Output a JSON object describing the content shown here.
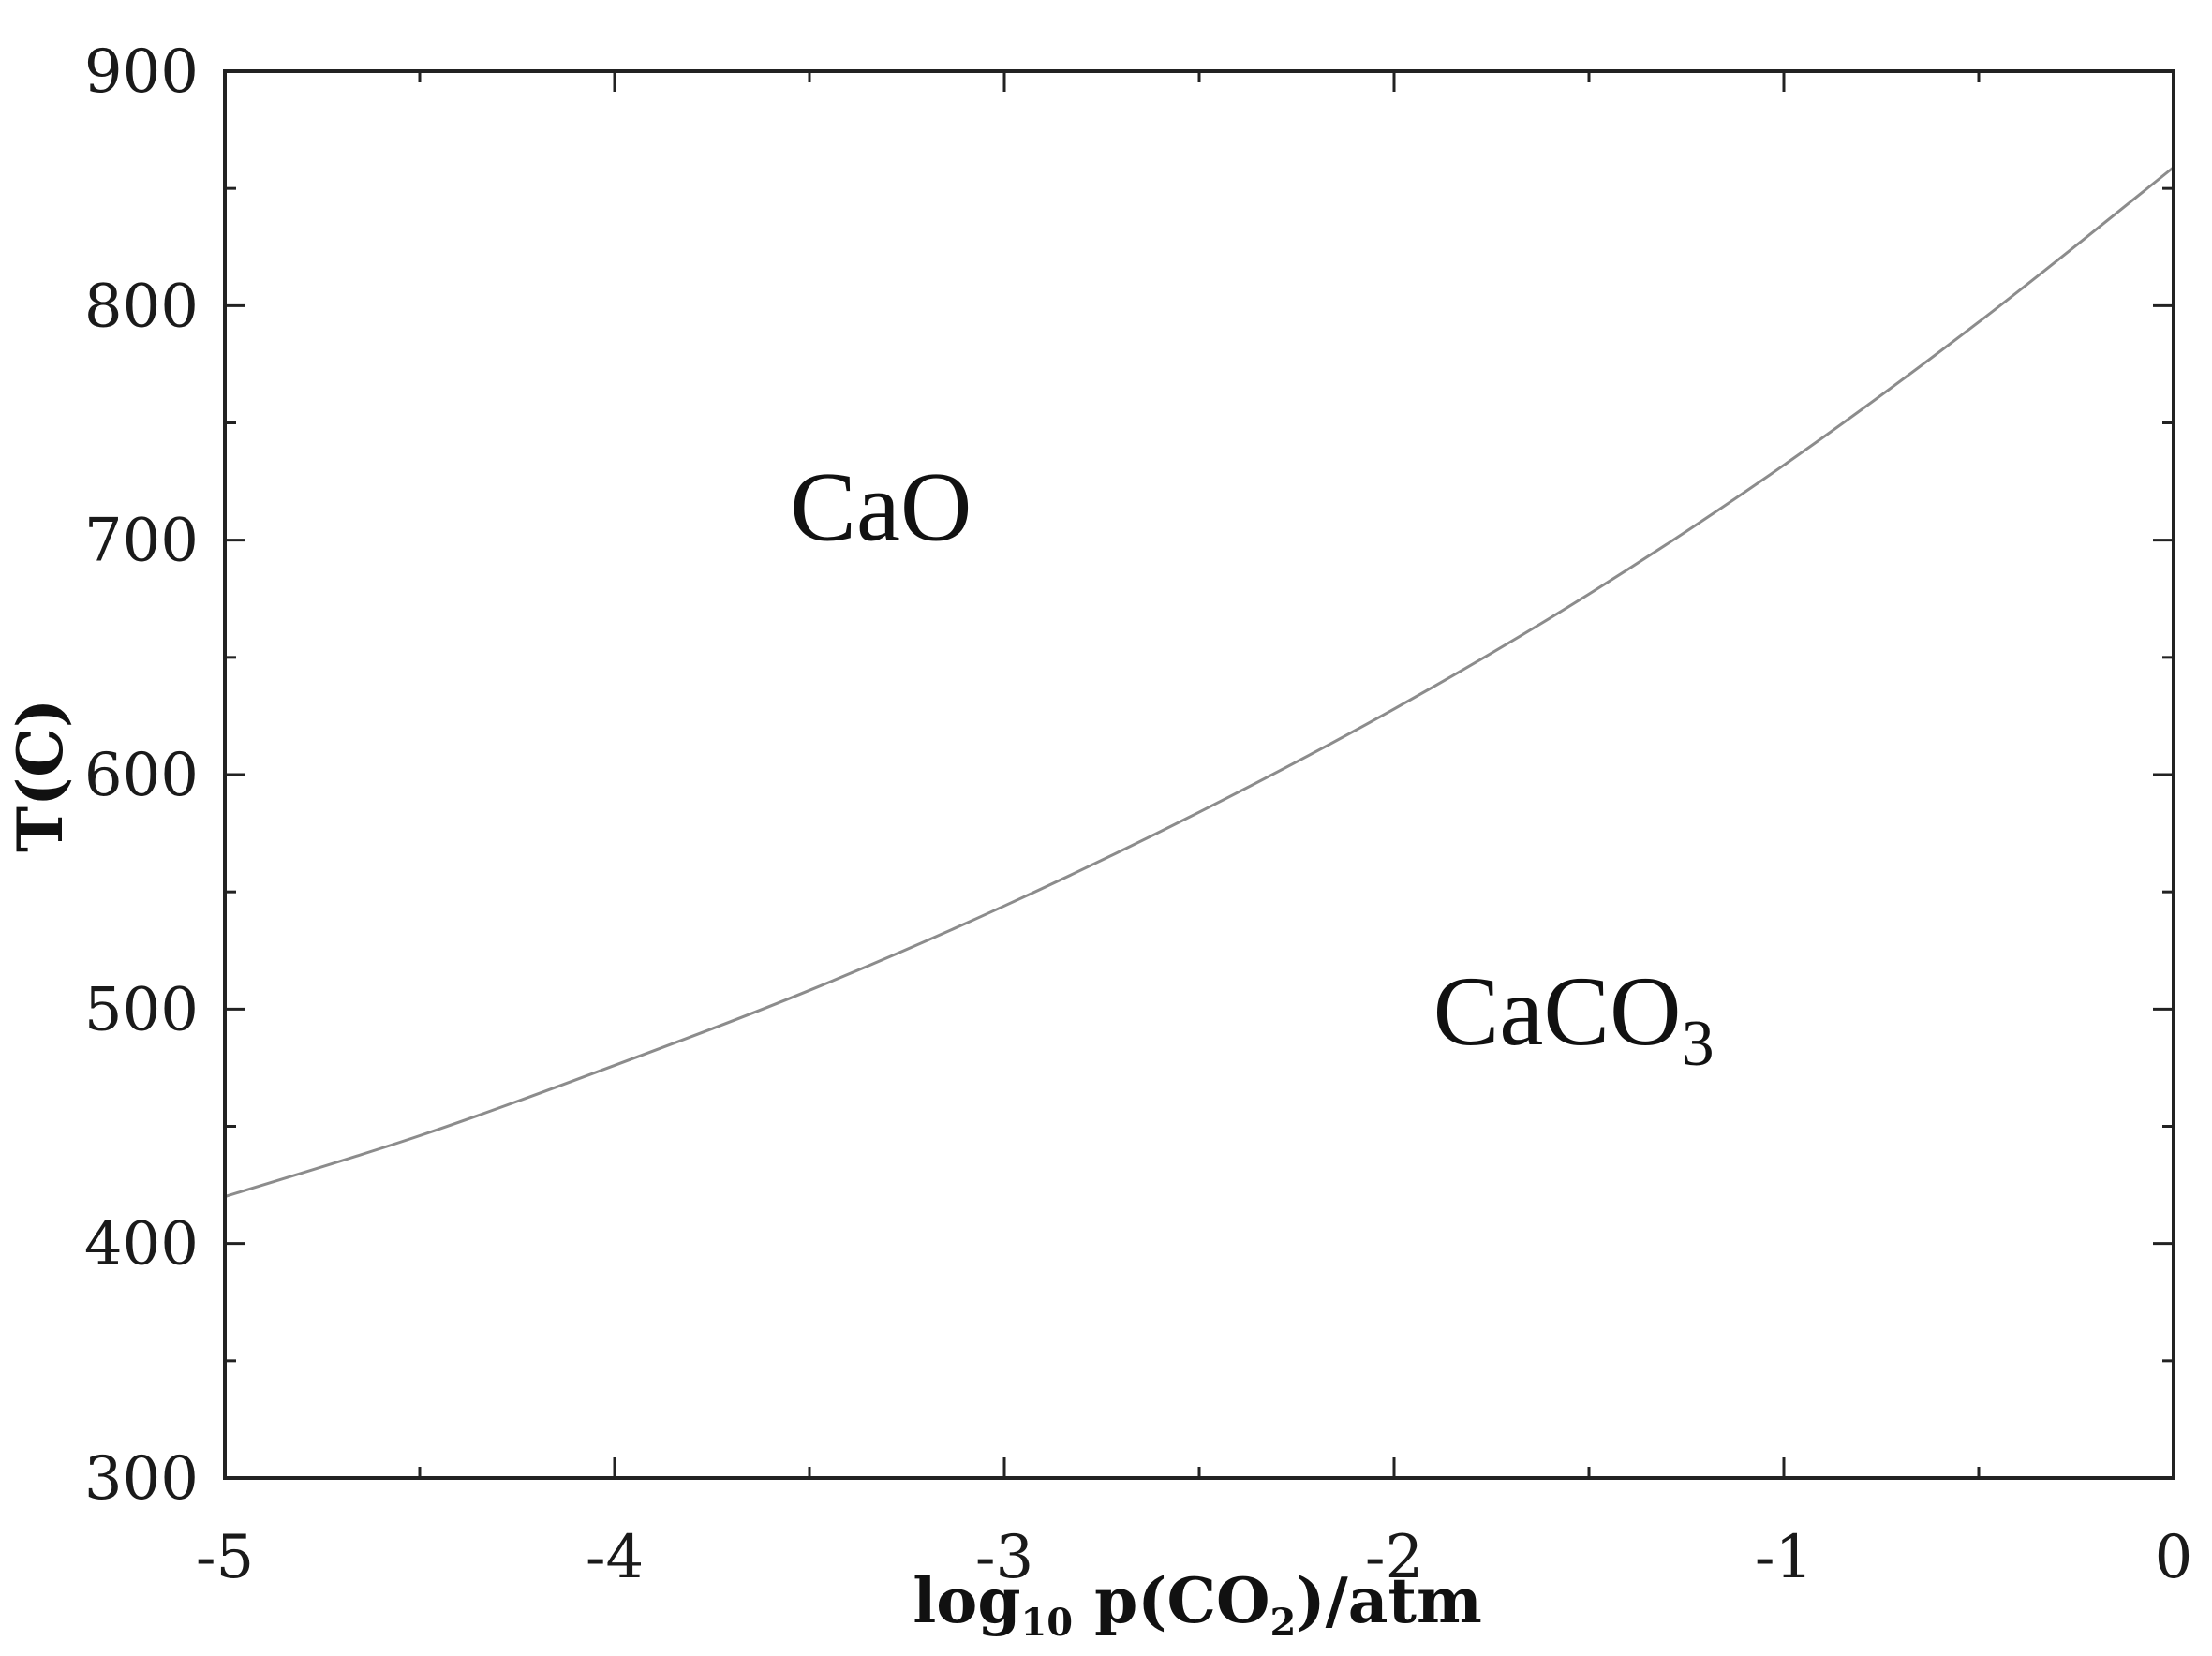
{
  "chart_data": {
    "type": "line",
    "xlabel_main": "log",
    "xlabel_sub": "10",
    "xlabel_mid": " p(CO",
    "xlabel_sub2": "2",
    "xlabel_end": ")/atm",
    "ylabel": "T(C)",
    "xlim": [
      -5,
      0
    ],
    "ylim": [
      300,
      900
    ],
    "x_ticks": [
      -5,
      -4,
      -3,
      -2,
      -1,
      0
    ],
    "x_tick_labels": [
      "-5",
      "-4",
      "-3",
      "-2",
      "-1",
      "0"
    ],
    "y_ticks": [
      300,
      400,
      500,
      600,
      700,
      800,
      900
    ],
    "y_tick_labels": [
      "300",
      "400",
      "500",
      "600",
      "700",
      "800",
      "900"
    ],
    "grid": false,
    "series": [
      {
        "x": [
          -5,
          -4.5,
          -4,
          -3.5,
          -3,
          -2.5,
          -2,
          -1.5,
          -1,
          -0.5,
          0
        ],
        "y": [
          420,
          446,
          476,
          508,
          544,
          584,
          628,
          677,
          732,
          793,
          859
        ],
        "color": "#8c8c8c"
      }
    ],
    "annotations": [
      {
        "text": "CaO",
        "x": -3.55,
        "y": 700
      },
      {
        "text": "CaCO",
        "sub": "3",
        "x": -1.9,
        "y": 485
      }
    ]
  }
}
